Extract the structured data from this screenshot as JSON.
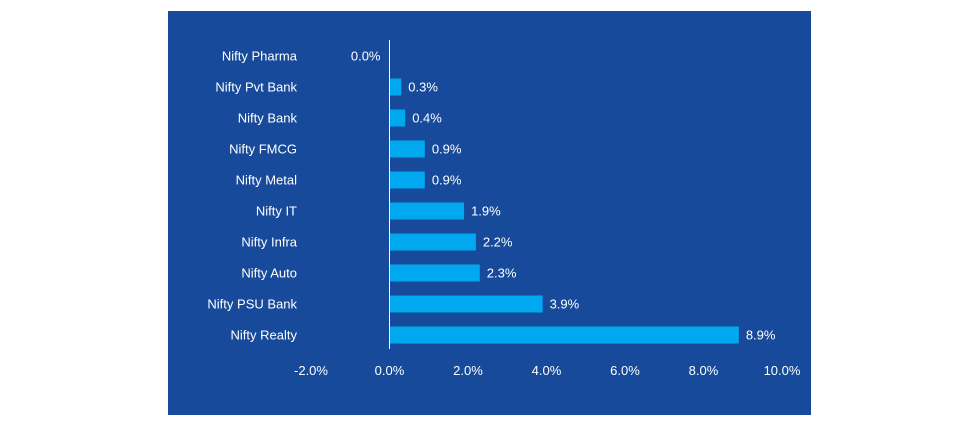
{
  "chart_data": {
    "type": "bar",
    "orientation": "horizontal",
    "title": "",
    "xlabel": "",
    "ylabel": "",
    "categories": [
      "Nifty Pharma",
      "Nifty Pvt Bank",
      "Nifty Bank",
      "Nifty FMCG",
      "Nifty Metal",
      "Nifty IT",
      "Nifty Infra",
      "Nifty Auto",
      "Nifty PSU Bank",
      "Nifty Realty"
    ],
    "values": [
      0.0,
      0.3,
      0.4,
      0.9,
      0.9,
      1.9,
      2.2,
      2.3,
      3.9,
      8.9
    ],
    "value_labels": [
      "0.0%",
      "0.3%",
      "0.4%",
      "0.9%",
      "0.9%",
      "1.9%",
      "2.2%",
      "2.3%",
      "3.9%",
      "8.9%"
    ],
    "xlim": [
      -2.0,
      10.0
    ],
    "ticks": [
      -2.0,
      0.0,
      2.0,
      4.0,
      6.0,
      8.0,
      10.0
    ],
    "tick_labels": [
      "-2.0%",
      "0.0%",
      "2.0%",
      "4.0%",
      "6.0%",
      "8.0%",
      "10.0%"
    ],
    "grid": false,
    "legend": "none"
  },
  "colors": {
    "background": "#174a9a",
    "bar": "#00a8f0",
    "text": "#ffffff",
    "axis": "#ffffff"
  }
}
